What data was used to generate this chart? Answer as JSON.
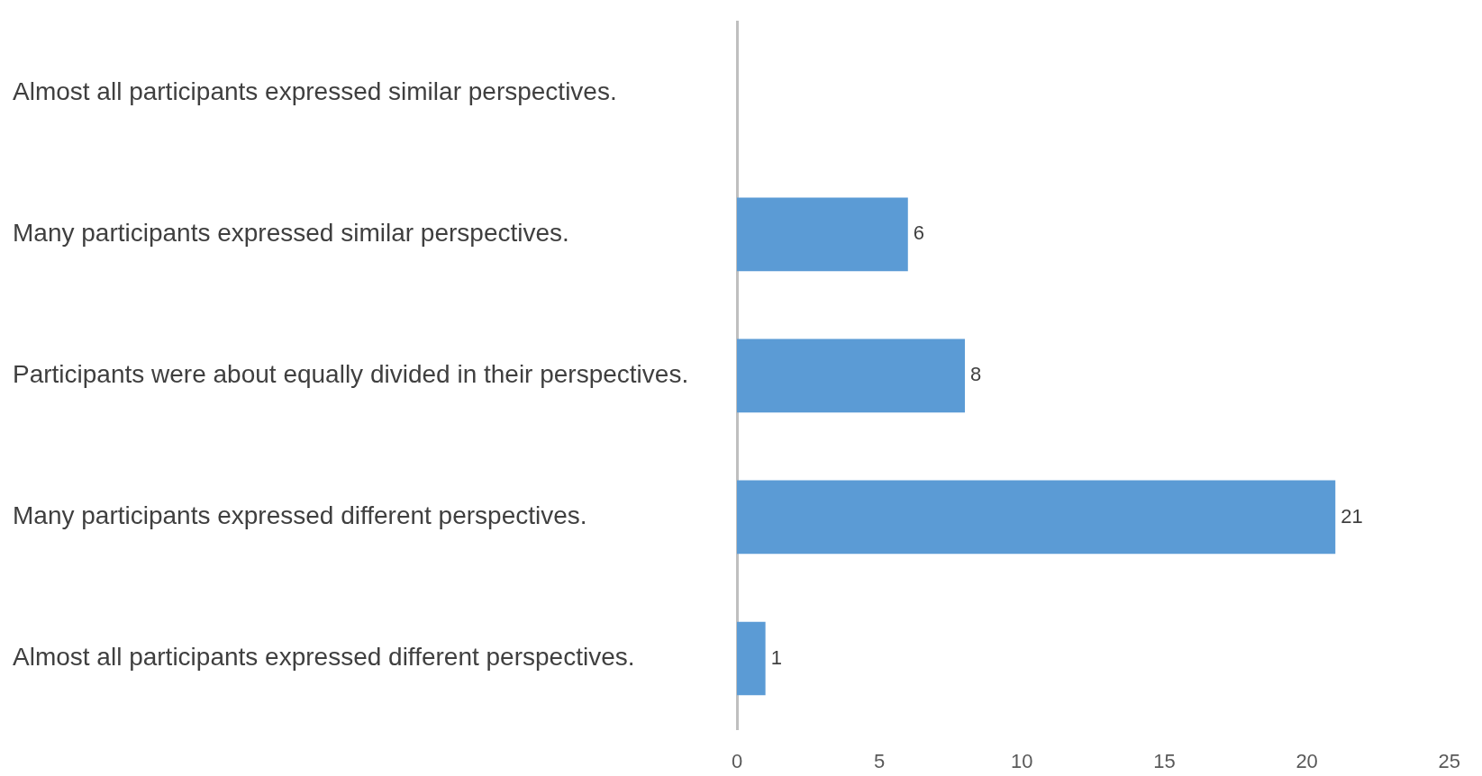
{
  "chart_data": {
    "type": "bar",
    "orientation": "horizontal",
    "categories": [
      "Almost all participants expressed similar perspectives.",
      "Many participants expressed similar perspectives.",
      "Participants were about equally divided in their perspectives.",
      "Many participants expressed different perspectives.",
      "Almost all participants expressed different perspectives."
    ],
    "values": [
      0,
      6,
      8,
      21,
      1
    ],
    "value_labels": [
      null,
      "6",
      "8",
      "21",
      "1"
    ],
    "color": "#5b9bd5",
    "xlim": [
      0,
      25
    ],
    "xticks": [
      0,
      5,
      10,
      15,
      20,
      25
    ],
    "grid": false,
    "legend": false
  }
}
